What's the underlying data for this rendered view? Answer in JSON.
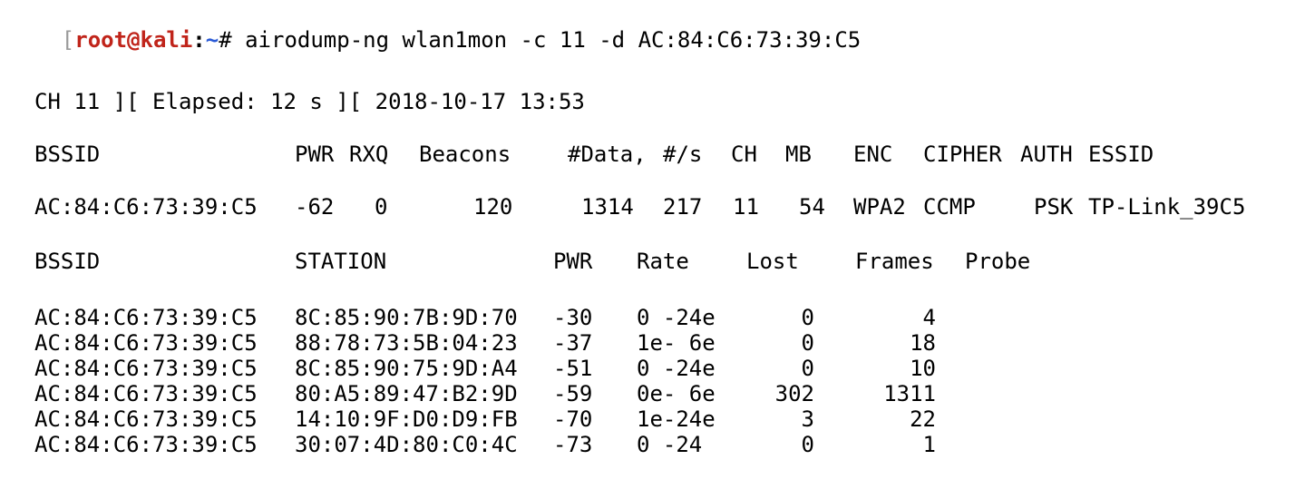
{
  "prompt": {
    "bracket": "[",
    "user_host": "root@kali",
    "colon": ":",
    "path": "~",
    "symbol": "#",
    "command": " airodump-ng wlan1mon -c 11 -d AC:84:C6:73:39:C5"
  },
  "status_line": "CH 11 ][ Elapsed: 12 s ][ 2018-10-17 13:53",
  "ap_table": {
    "headers": {
      "bssid": "BSSID",
      "pwr": "PWR",
      "rxq": "RXQ",
      "beacons": "Beacons",
      "data": "#Data,",
      "per_s": "#/s",
      "ch": "CH",
      "mb": "MB",
      "enc": "ENC",
      "cipher": "CIPHER",
      "auth": "AUTH",
      "essid": "ESSID"
    },
    "rows": [
      {
        "bssid": "AC:84:C6:73:39:C5",
        "pwr": "-62",
        "rxq": "0",
        "beacons": "120",
        "data": "1314",
        "per_s": "217",
        "ch": "11",
        "mb": "54",
        "enc": "WPA2",
        "cipher": "CCMP",
        "auth": "PSK",
        "essid": "TP-Link_39C5"
      }
    ]
  },
  "station_table": {
    "headers": {
      "bssid": "BSSID",
      "station": "STATION",
      "pwr": "PWR",
      "rate": "Rate",
      "lost": "Lost",
      "frames": "Frames",
      "probe": "Probe"
    },
    "rows": [
      {
        "bssid": "AC:84:C6:73:39:C5",
        "station": "8C:85:90:7B:9D:70",
        "pwr": "-30",
        "rate": "0 -24e",
        "lost": "0",
        "frames": "4",
        "probe": ""
      },
      {
        "bssid": "AC:84:C6:73:39:C5",
        "station": "88:78:73:5B:04:23",
        "pwr": "-37",
        "rate": "1e- 6e",
        "lost": "0",
        "frames": "18",
        "probe": ""
      },
      {
        "bssid": "AC:84:C6:73:39:C5",
        "station": "8C:85:90:75:9D:A4",
        "pwr": "-51",
        "rate": "0 -24e",
        "lost": "0",
        "frames": "10",
        "probe": ""
      },
      {
        "bssid": "AC:84:C6:73:39:C5",
        "station": "80:A5:89:47:B2:9D",
        "pwr": "-59",
        "rate": "0e- 6e",
        "lost": "302",
        "frames": "1311",
        "probe": ""
      },
      {
        "bssid": "AC:84:C6:73:39:C5",
        "station": "14:10:9F:D0:D9:FB",
        "pwr": "-70",
        "rate": "1e-24e",
        "lost": "3",
        "frames": "22",
        "probe": ""
      },
      {
        "bssid": "AC:84:C6:73:39:C5",
        "station": "30:07:4D:80:C0:4C",
        "pwr": "-73",
        "rate": "0 -24",
        "lost": "0",
        "frames": "1",
        "probe": ""
      }
    ]
  }
}
